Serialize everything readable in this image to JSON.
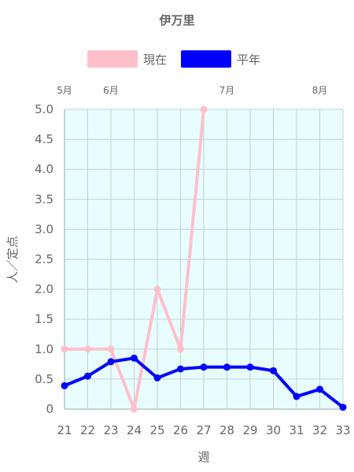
{
  "chart_data": {
    "type": "line",
    "title": "伊万里",
    "xlabel": "週",
    "ylabel": "人／定点",
    "x": [
      21,
      22,
      23,
      24,
      25,
      26,
      27,
      28,
      29,
      30,
      31,
      32,
      33
    ],
    "ylim": [
      0,
      5.0
    ],
    "yticks": [
      "0",
      "0.5",
      "1.0",
      "1.5",
      "2.0",
      "2.5",
      "3.0",
      "3.5",
      "4.0",
      "4.5",
      "5.0"
    ],
    "month_labels": [
      {
        "label": "5月",
        "x": 21
      },
      {
        "label": "6月",
        "x": 23
      },
      {
        "label": "7月",
        "x": 28
      },
      {
        "label": "8月",
        "x": 32
      }
    ],
    "grid": true,
    "legend_position": "top",
    "plot_background": "#e8fdff",
    "series": [
      {
        "name": "現在",
        "color": "#ffc0cb",
        "values": [
          1.0,
          1.0,
          1.0,
          0.0,
          2.0,
          1.0,
          5.0,
          null,
          null,
          null,
          null,
          null,
          null
        ]
      },
      {
        "name": "平年",
        "color": "#0000ff",
        "values": [
          0.39,
          0.55,
          0.79,
          0.85,
          0.52,
          0.67,
          0.7,
          0.7,
          0.7,
          0.64,
          0.21,
          0.33,
          0.03
        ]
      }
    ]
  }
}
